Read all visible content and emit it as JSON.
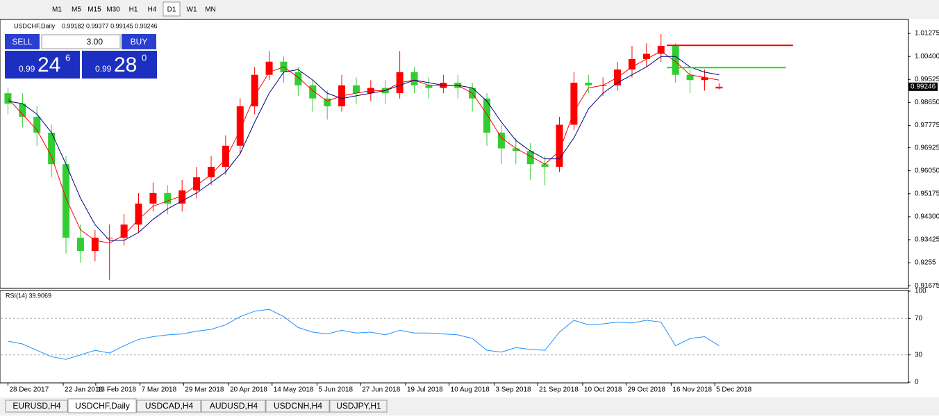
{
  "toolbar": {
    "timeframes": [
      "M1",
      "M5",
      "M15",
      "M30",
      "H1",
      "H4",
      "D1",
      "W1",
      "MN"
    ],
    "active": 6
  },
  "trade_panel": {
    "sell_label": "SELL",
    "buy_label": "BUY",
    "lots": "3.00",
    "sell_big": "0.99",
    "sell_pips": "24",
    "sell_frac": "6",
    "buy_big": "0.99",
    "buy_pips": "28",
    "buy_frac": "0"
  },
  "tabs": {
    "items": [
      "EURUSD,H4",
      "USDCHF,Daily",
      "USDCAD,H4",
      "AUDUSD,H4",
      "USDCNH,H4",
      "USDJPY,H1"
    ],
    "active": 1
  },
  "chart_data": [
    {
      "type": "candlestick",
      "title": "USDCHF,Daily",
      "ohlc_text": "0.99182 0.99377 0.99145 0.99246",
      "x": [
        0,
        1,
        2,
        3,
        4,
        5,
        6,
        7,
        8,
        9,
        10,
        11,
        12,
        13,
        14,
        15,
        16,
        17,
        18,
        19,
        20,
        21,
        22,
        23,
        24,
        25,
        26,
        27,
        28,
        29,
        30,
        31,
        32,
        33,
        34,
        35,
        36,
        37,
        38,
        39,
        40,
        41,
        42,
        43,
        44,
        45,
        46,
        47,
        48,
        49
      ],
      "open": [
        0.99,
        0.986,
        0.981,
        0.975,
        0.963,
        0.935,
        0.93,
        0.935,
        0.935,
        0.94,
        0.948,
        0.952,
        0.948,
        0.953,
        0.958,
        0.962,
        0.97,
        0.985,
        0.997,
        1.002,
        0.998,
        0.993,
        0.988,
        0.985,
        0.993,
        0.99,
        0.992,
        0.99,
        0.998,
        0.993,
        0.992,
        0.994,
        0.992,
        0.988,
        0.975,
        0.969,
        0.968,
        0.963,
        0.962,
        0.978,
        0.994,
        0.993,
        0.993,
        0.999,
        1.003,
        1.005,
        1.008,
        0.997,
        0.995,
        0.99182
      ],
      "high": [
        0.992,
        0.99,
        0.985,
        0.978,
        0.966,
        0.94,
        0.938,
        0.94,
        0.944,
        0.952,
        0.956,
        0.955,
        0.957,
        0.962,
        0.966,
        0.974,
        0.988,
        1.0,
        1.006,
        1.004,
        1.0,
        0.995,
        0.991,
        0.997,
        0.996,
        0.995,
        0.995,
        1.006,
        1.0,
        0.996,
        0.997,
        0.997,
        0.994,
        0.99,
        0.978,
        0.973,
        0.971,
        0.966,
        0.981,
        0.998,
        0.997,
        0.996,
        1.002,
        1.008,
        1.009,
        1.0125,
        1.009,
        0.999,
        0.999,
        0.99377
      ],
      "low": [
        0.982,
        0.977,
        0.97,
        0.958,
        0.929,
        0.9255,
        0.926,
        0.919,
        0.932,
        0.937,
        0.945,
        0.944,
        0.945,
        0.95,
        0.955,
        0.959,
        0.967,
        0.982,
        0.995,
        0.994,
        0.989,
        0.983,
        0.98,
        0.983,
        0.986,
        0.987,
        0.986,
        0.988,
        0.99,
        0.988,
        0.99,
        0.988,
        0.983,
        0.97,
        0.963,
        0.963,
        0.957,
        0.955,
        0.96,
        0.976,
        0.99,
        0.989,
        0.991,
        0.996,
        1.0,
        1.002,
        0.994,
        0.99,
        0.991,
        0.99145
      ],
      "close": [
        0.986,
        0.981,
        0.975,
        0.963,
        0.935,
        0.93,
        0.935,
        0.935,
        0.94,
        0.948,
        0.952,
        0.948,
        0.953,
        0.958,
        0.962,
        0.97,
        0.985,
        0.997,
        1.002,
        0.998,
        0.993,
        0.988,
        0.985,
        0.993,
        0.99,
        0.992,
        0.99,
        0.998,
        0.993,
        0.992,
        0.994,
        0.992,
        0.988,
        0.975,
        0.969,
        0.968,
        0.963,
        0.962,
        0.978,
        0.994,
        0.993,
        0.993,
        0.999,
        1.003,
        1.005,
        1.008,
        0.997,
        0.995,
        0.996,
        0.99246
      ],
      "up_color": "#ff0000",
      "down_color": "#32cd32",
      "overlays": [
        {
          "color": "#ff0000",
          "values": [
            0.988,
            0.982,
            0.976,
            0.966,
            0.95,
            0.938,
            0.934,
            0.933,
            0.936,
            0.942,
            0.947,
            0.949,
            0.951,
            0.955,
            0.959,
            0.965,
            0.976,
            0.989,
            0.998,
            1.0,
            0.996,
            0.991,
            0.987,
            0.989,
            0.99,
            0.991,
            0.991,
            0.994,
            0.995,
            0.993,
            0.993,
            0.993,
            0.99,
            0.982,
            0.973,
            0.969,
            0.966,
            0.963,
            0.968,
            0.983,
            0.992,
            0.993,
            0.996,
            1.0,
            1.003,
            1.006,
            1.002,
            0.997,
            0.996,
            0.995
          ]
        },
        {
          "color": "#000080",
          "values": [
            0.987,
            0.986,
            0.982,
            0.975,
            0.963,
            0.95,
            0.94,
            0.934,
            0.934,
            0.937,
            0.942,
            0.946,
            0.949,
            0.952,
            0.956,
            0.96,
            0.967,
            0.979,
            0.99,
            0.998,
            0.999,
            0.995,
            0.99,
            0.988,
            0.989,
            0.99,
            0.991,
            0.993,
            0.995,
            0.994,
            0.993,
            0.993,
            0.992,
            0.987,
            0.979,
            0.972,
            0.968,
            0.965,
            0.965,
            0.973,
            0.984,
            0.99,
            0.994,
            0.997,
            1.0,
            1.004,
            1.004,
            1.0,
            0.998,
            0.997
          ]
        }
      ],
      "levels": [
        {
          "value": 1.0082,
          "x": [
            45.4,
            54.1
          ],
          "color": "#ff0000"
        },
        {
          "value": 0.99975,
          "x": [
            45.4,
            53.6
          ],
          "color": "#00ee00"
        }
      ],
      "last_price": 0.99246,
      "xlim": [
        -0.5,
        62
      ],
      "ylim": [
        0.916,
        1.0178
      ],
      "yticks": [
        1.01275,
        {
          "value": 1.004,
          "label": "1.00400"
        },
        0.99525,
        {
          "value": 0.9865,
          "label": "0.98650"
        },
        0.97775,
        0.96925,
        {
          "value": 0.9605,
          "label": "0.96050"
        },
        0.95175,
        {
          "value": 0.943,
          "label": "0.94300"
        },
        0.93425,
        0.9255,
        0.91675
      ],
      "xticks": [
        {
          "value": 0,
          "label": "28 Dec 2017"
        },
        {
          "value": 3.81,
          "label": "22 Jan 2018"
        },
        {
          "value": 6.05,
          "label": "13 Feb 2018"
        },
        {
          "value": 9.1,
          "label": "7 Mar 2018"
        },
        {
          "value": 12.1,
          "label": "29 Mar 2018"
        },
        {
          "value": 15.2,
          "label": "20 Apr 2018"
        },
        {
          "value": 18.2,
          "label": "14 May 2018"
        },
        {
          "value": 21.3,
          "label": "5 Jun 2018"
        },
        {
          "value": 24.3,
          "label": "27 Jun 2018"
        },
        {
          "value": 27.4,
          "label": "19 Jul 2018"
        },
        {
          "value": 30.4,
          "label": "10 Aug 2018"
        },
        {
          "value": 33.5,
          "label": "3 Sep 2018"
        },
        {
          "value": 36.5,
          "label": "21 Sep 2018"
        },
        {
          "value": 39.6,
          "label": "10 Oct 2018"
        },
        {
          "value": 42.6,
          "label": "29 Oct 2018"
        },
        {
          "value": 45.7,
          "label": "16 Nov 2018"
        },
        {
          "value": 48.7,
          "label": "5 Dec 2018"
        }
      ]
    },
    {
      "type": "line",
      "title": "RSI(14) 39.9069",
      "color": "#1e90ff",
      "x": [
        0,
        1,
        2,
        3,
        4,
        5,
        6,
        7,
        8,
        9,
        10,
        11,
        12,
        13,
        14,
        15,
        16,
        17,
        18,
        19,
        20,
        21,
        22,
        23,
        24,
        25,
        26,
        27,
        28,
        29,
        30,
        31,
        32,
        33,
        34,
        35,
        36,
        37,
        38,
        39,
        40,
        41,
        42,
        43,
        44,
        45,
        46,
        47,
        48,
        49
      ],
      "values": [
        45,
        42,
        35,
        28,
        25,
        30,
        35,
        32,
        40,
        47,
        50,
        52,
        53,
        56,
        58,
        63,
        72,
        78,
        80,
        72,
        60,
        55,
        53,
        57,
        54,
        55,
        52,
        57,
        54,
        54,
        53,
        52,
        48,
        35,
        33,
        38,
        36,
        35,
        55,
        68,
        63,
        64,
        66,
        65,
        68,
        66,
        40,
        48,
        50,
        40
      ],
      "xlim": [
        -0.5,
        62
      ],
      "ylim": [
        0,
        100
      ],
      "yticks": [
        0,
        30,
        70,
        100
      ],
      "dashed_levels": [
        30,
        70
      ]
    }
  ]
}
